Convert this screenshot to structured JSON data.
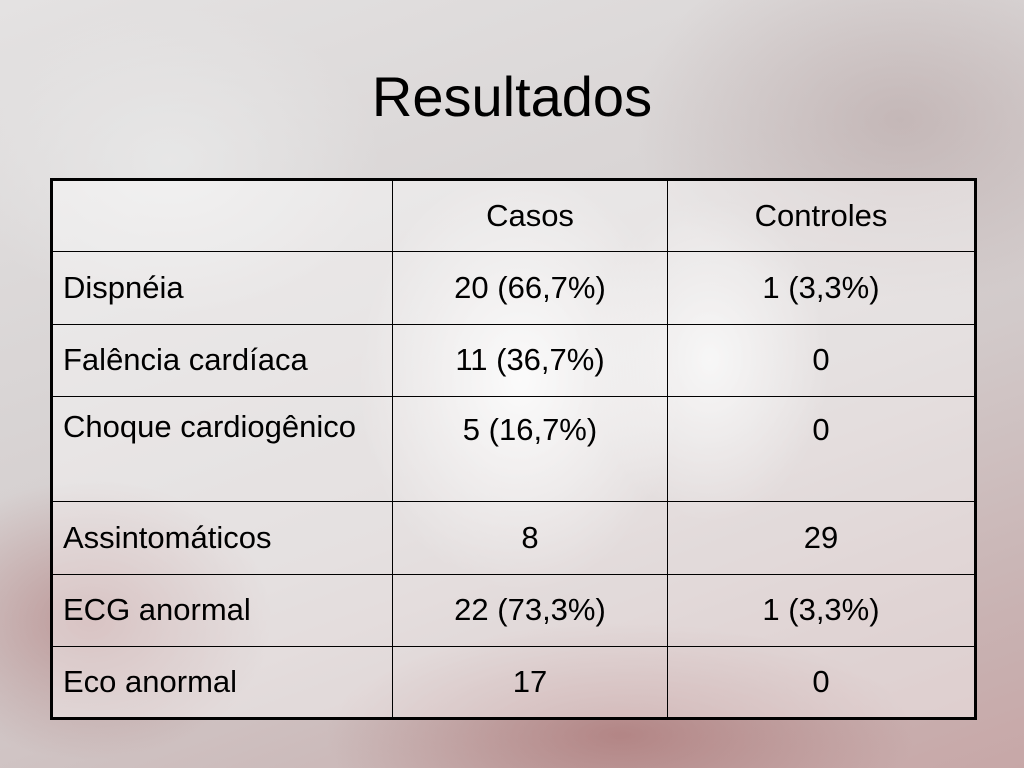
{
  "slide": {
    "title": "Resultados"
  },
  "table": {
    "corner": "",
    "columns": [
      "Casos",
      "Controles"
    ],
    "rows": [
      {
        "label": "Dispnéia",
        "casos": "20 (66,7%)",
        "controles": "1 (3,3%)"
      },
      {
        "label": "Falência cardíaca",
        "casos": "11 (36,7%)",
        "controles": "0"
      },
      {
        "label": "Choque cardiogênico",
        "casos": "5 (16,7%)",
        "controles": "0"
      },
      {
        "label": "Assintomáticos",
        "casos": "8",
        "controles": "29"
      },
      {
        "label": "ECG anormal",
        "casos": "22 (73,3%)",
        "controles": "1 (3,3%)"
      },
      {
        "label": "Eco anormal",
        "casos": "17",
        "controles": "0"
      }
    ]
  }
}
